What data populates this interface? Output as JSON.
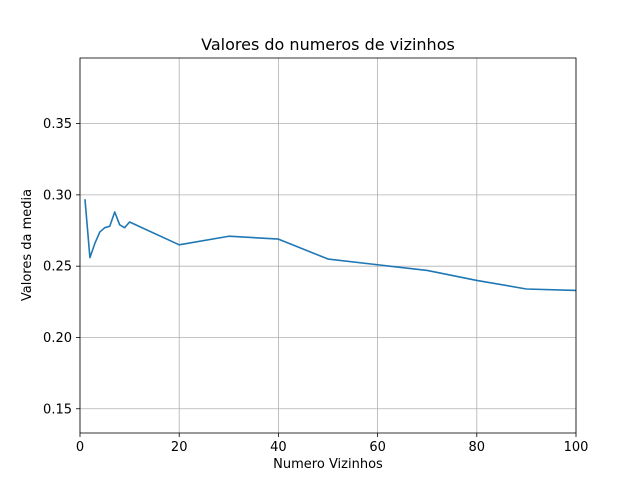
{
  "chart_data": {
    "type": "line",
    "title": "Valores do numeros de vizinhos",
    "xlabel": "Numero Vizinhos",
    "ylabel": "Valores da media",
    "xlim": [
      0,
      100
    ],
    "ylim": [
      0.133,
      0.396
    ],
    "xticks": [
      0,
      20,
      40,
      60,
      80,
      100
    ],
    "xtick_labels": [
      "0",
      "20",
      "40",
      "60",
      "80",
      "100"
    ],
    "yticks": [
      0.15,
      0.2,
      0.25,
      0.3,
      0.35
    ],
    "ytick_labels": [
      "0.15",
      "0.20",
      "0.25",
      "0.30",
      "0.35"
    ],
    "grid": true,
    "series": [
      {
        "color": "#1f77b4",
        "x": [
          1,
          2,
          3,
          4,
          5,
          6,
          7,
          8,
          9,
          10,
          20,
          30,
          40,
          50,
          60,
          70,
          80,
          90,
          100
        ],
        "y": [
          0.297,
          0.256,
          0.266,
          0.274,
          0.277,
          0.278,
          0.288,
          0.279,
          0.277,
          0.281,
          0.265,
          0.271,
          0.269,
          0.255,
          0.251,
          0.247,
          0.24,
          0.234,
          0.233
        ]
      }
    ]
  }
}
